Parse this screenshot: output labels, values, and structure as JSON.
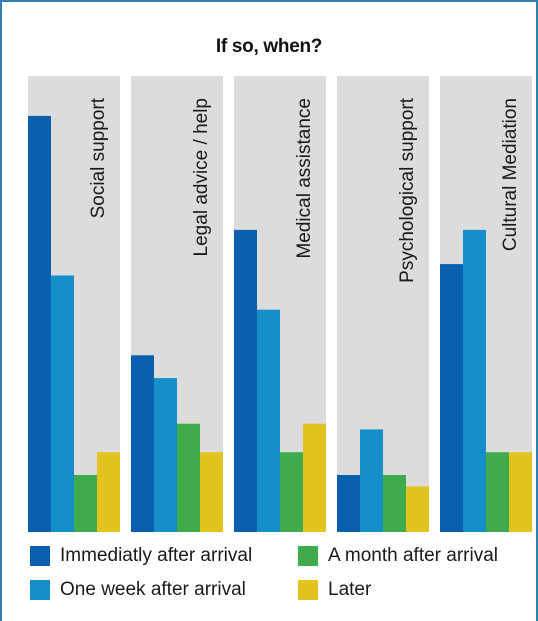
{
  "chart_data": {
    "type": "bar",
    "title": "If so, when?",
    "categories": [
      "Social support",
      "Legal advice / help",
      "Medical assistance",
      "Psychological support",
      "Cultural Mediation"
    ],
    "series": [
      {
        "name": "Immediatly after arrival",
        "color": "#0a5fae",
        "values": [
          36.5,
          15.5,
          26.5,
          5,
          23.5
        ]
      },
      {
        "name": "One week after arrival",
        "color": "#158fca",
        "values": [
          22.5,
          13.5,
          19.5,
          9,
          26.5
        ]
      },
      {
        "name": "A month after arrival",
        "color": "#40ab4c",
        "values": [
          5,
          9.5,
          7,
          5,
          7
        ]
      },
      {
        "name": "Later",
        "color": "#e2c320",
        "values": [
          7,
          7,
          9.5,
          4,
          7
        ]
      }
    ],
    "ylim": [
      0,
      40
    ],
    "panel_background": "#dcdcdc",
    "legend_position": "bottom"
  }
}
